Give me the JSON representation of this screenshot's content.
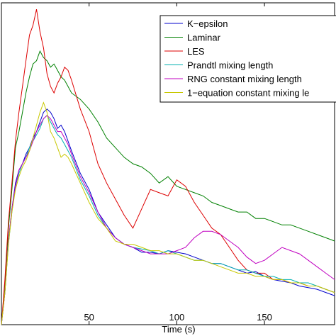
{
  "chart_data": {
    "type": "line",
    "title": "",
    "xlabel": "Time (s)",
    "ylabel": "",
    "xlim": [
      0,
      190
    ],
    "ylim": [
      0,
      1
    ],
    "x_ticks": [
      50,
      100,
      150
    ],
    "x_tick_labels": [
      "50",
      "100",
      "150"
    ],
    "grid": false,
    "legend_position": "top-right",
    "series": [
      {
        "name": "K−epsilon",
        "color": "#0000cc",
        "x": [
          0,
          2,
          4,
          6,
          8,
          10,
          12,
          14,
          16,
          18,
          20,
          22,
          24,
          26,
          28,
          30,
          32,
          34,
          36,
          38,
          40,
          45,
          50,
          55,
          60,
          65,
          70,
          75,
          80,
          85,
          90,
          95,
          100,
          105,
          110,
          115,
          120,
          125,
          130,
          135,
          140,
          145,
          150,
          155,
          160,
          165,
          170,
          175,
          180,
          185,
          190
        ],
        "y": [
          0.0,
          0.1,
          0.26,
          0.36,
          0.44,
          0.48,
          0.5,
          0.53,
          0.55,
          0.58,
          0.6,
          0.63,
          0.66,
          0.67,
          0.66,
          0.64,
          0.61,
          0.62,
          0.6,
          0.57,
          0.54,
          0.47,
          0.42,
          0.35,
          0.31,
          0.27,
          0.25,
          0.24,
          0.225,
          0.225,
          0.22,
          0.23,
          0.225,
          0.22,
          0.21,
          0.2,
          0.19,
          0.19,
          0.18,
          0.17,
          0.16,
          0.165,
          0.15,
          0.14,
          0.135,
          0.13,
          0.12,
          0.115,
          0.11,
          0.1,
          0.09
        ]
      },
      {
        "name": "Laminar",
        "color": "#008000",
        "x": [
          0,
          2,
          4,
          6,
          8,
          10,
          12,
          14,
          16,
          18,
          20,
          22,
          24,
          26,
          28,
          30,
          32,
          34,
          36,
          38,
          40,
          45,
          50,
          55,
          60,
          65,
          70,
          75,
          80,
          85,
          90,
          95,
          100,
          105,
          110,
          115,
          120,
          125,
          130,
          135,
          140,
          145,
          150,
          155,
          160,
          165,
          170,
          175,
          180,
          185,
          190
        ],
        "y": [
          0.0,
          0.12,
          0.3,
          0.42,
          0.55,
          0.6,
          0.66,
          0.72,
          0.77,
          0.81,
          0.82,
          0.85,
          0.83,
          0.82,
          0.8,
          0.81,
          0.79,
          0.77,
          0.76,
          0.74,
          0.72,
          0.7,
          0.67,
          0.63,
          0.58,
          0.55,
          0.52,
          0.5,
          0.49,
          0.47,
          0.44,
          0.46,
          0.43,
          0.42,
          0.41,
          0.4,
          0.38,
          0.37,
          0.36,
          0.35,
          0.35,
          0.33,
          0.33,
          0.32,
          0.31,
          0.31,
          0.3,
          0.29,
          0.28,
          0.27,
          0.26
        ]
      },
      {
        "name": "LES",
        "color": "#dd0000",
        "x": [
          0,
          2,
          4,
          6,
          8,
          10,
          12,
          14,
          16,
          18,
          20,
          22,
          24,
          26,
          28,
          30,
          32,
          34,
          36,
          38,
          40,
          45,
          50,
          55,
          60,
          65,
          70,
          75,
          80,
          85,
          90,
          95,
          100,
          105,
          110,
          115,
          120,
          125,
          130,
          135,
          140,
          145,
          150,
          155,
          160,
          165,
          170,
          175,
          180,
          185,
          190
        ],
        "y": [
          0.0,
          0.14,
          0.32,
          0.44,
          0.57,
          0.66,
          0.74,
          0.82,
          0.9,
          0.93,
          0.98,
          0.91,
          0.86,
          0.78,
          0.74,
          0.72,
          0.75,
          0.77,
          0.8,
          0.79,
          0.76,
          0.67,
          0.6,
          0.5,
          0.44,
          0.39,
          0.34,
          0.3,
          0.36,
          0.42,
          0.41,
          0.4,
          0.45,
          0.43,
          0.38,
          0.34,
          0.3,
          0.28,
          0.24,
          0.2,
          0.17,
          0.16,
          0.16,
          0.14,
          0.14,
          0.13,
          0.13,
          0.12,
          0.12,
          0.11,
          0.1
        ]
      },
      {
        "name": "Prandtl mixing length",
        "color": "#00b0b0",
        "x": [
          0,
          2,
          4,
          6,
          8,
          10,
          12,
          14,
          16,
          18,
          20,
          22,
          24,
          26,
          28,
          30,
          32,
          34,
          36,
          38,
          40,
          45,
          50,
          55,
          60,
          65,
          70,
          75,
          80,
          85,
          90,
          95,
          100,
          105,
          110,
          115,
          120,
          125,
          130,
          135,
          140,
          145,
          150,
          155,
          160,
          165,
          170,
          175,
          180,
          185,
          190
        ],
        "y": [
          0.0,
          0.1,
          0.25,
          0.35,
          0.43,
          0.47,
          0.5,
          0.52,
          0.55,
          0.57,
          0.59,
          0.61,
          0.64,
          0.65,
          0.63,
          0.61,
          0.59,
          0.58,
          0.56,
          0.54,
          0.52,
          0.45,
          0.4,
          0.34,
          0.3,
          0.27,
          0.25,
          0.24,
          0.235,
          0.23,
          0.22,
          0.23,
          0.22,
          0.21,
          0.2,
          0.2,
          0.19,
          0.19,
          0.18,
          0.17,
          0.17,
          0.16,
          0.15,
          0.15,
          0.14,
          0.14,
          0.13,
          0.13,
          0.12,
          0.11,
          0.1
        ]
      },
      {
        "name": "RNG constant mixing length",
        "color": "#c000c0",
        "x": [
          0,
          2,
          4,
          6,
          8,
          10,
          12,
          14,
          16,
          18,
          20,
          22,
          24,
          26,
          28,
          30,
          32,
          34,
          36,
          38,
          40,
          45,
          50,
          55,
          60,
          65,
          70,
          75,
          80,
          85,
          90,
          95,
          100,
          105,
          110,
          115,
          120,
          125,
          130,
          135,
          140,
          145,
          150,
          155,
          160,
          165,
          170,
          175,
          180,
          185,
          190
        ],
        "y": [
          0.0,
          0.1,
          0.26,
          0.36,
          0.43,
          0.48,
          0.5,
          0.52,
          0.54,
          0.57,
          0.6,
          0.62,
          0.64,
          0.65,
          0.64,
          0.62,
          0.6,
          0.6,
          0.58,
          0.56,
          0.53,
          0.46,
          0.41,
          0.35,
          0.3,
          0.27,
          0.25,
          0.24,
          0.23,
          0.22,
          0.22,
          0.22,
          0.23,
          0.24,
          0.27,
          0.29,
          0.29,
          0.28,
          0.26,
          0.24,
          0.21,
          0.19,
          0.2,
          0.22,
          0.24,
          0.23,
          0.22,
          0.2,
          0.18,
          0.16,
          0.14
        ]
      },
      {
        "name": "1−equation constant mixing le",
        "color": "#c8c800",
        "x": [
          0,
          2,
          4,
          6,
          8,
          10,
          12,
          14,
          16,
          18,
          20,
          22,
          24,
          26,
          28,
          30,
          32,
          34,
          36,
          38,
          40,
          45,
          50,
          55,
          60,
          65,
          70,
          75,
          80,
          85,
          90,
          95,
          100,
          105,
          110,
          115,
          120,
          125,
          130,
          135,
          140,
          145,
          150,
          155,
          160,
          165,
          170,
          175,
          180,
          185,
          190
        ],
        "y": [
          0.0,
          0.1,
          0.25,
          0.35,
          0.42,
          0.46,
          0.49,
          0.51,
          0.54,
          0.58,
          0.62,
          0.66,
          0.69,
          0.66,
          0.6,
          0.58,
          0.55,
          0.52,
          0.53,
          0.52,
          0.5,
          0.44,
          0.38,
          0.33,
          0.3,
          0.26,
          0.25,
          0.25,
          0.24,
          0.23,
          0.23,
          0.22,
          0.22,
          0.21,
          0.2,
          0.2,
          0.19,
          0.18,
          0.17,
          0.16,
          0.16,
          0.15,
          0.15,
          0.14,
          0.14,
          0.13,
          0.13,
          0.12,
          0.12,
          0.11,
          0.1
        ]
      }
    ]
  }
}
